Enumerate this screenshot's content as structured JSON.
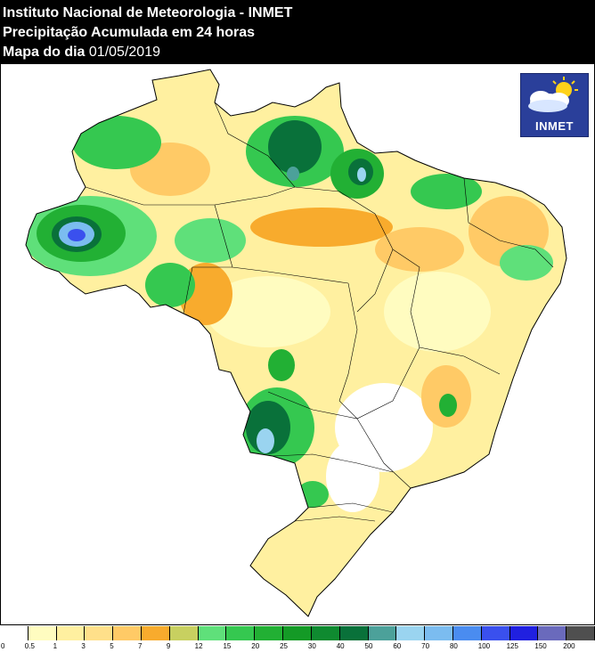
{
  "header": {
    "line1": "Instituto Nacional de Meteorologia - INMET",
    "line2": "Precipitação Acumulada em 24 horas",
    "line3_label": "Mapa do dia",
    "date": "01/05/2019"
  },
  "logo": {
    "text": "INMET",
    "icon": "sun-cloud-icon"
  },
  "legend": {
    "unit_note": "",
    "colors": [
      "#ffffff",
      "#fffcc0",
      "#fff0a0",
      "#ffe08a",
      "#ffca66",
      "#f8ab2d",
      "#c8d060",
      "#5fe07a",
      "#35c850",
      "#22b034",
      "#149a26",
      "#0f8a30",
      "#09713a",
      "#4ca19a",
      "#9ad4f0",
      "#7bbcf0",
      "#4a8cf0",
      "#3a50ee",
      "#2020e0",
      "#6a6abc",
      "#4f4f4f"
    ],
    "ticks": [
      "0",
      "0.5",
      "1",
      "3",
      "5",
      "7",
      "9",
      "12",
      "15",
      "20",
      "25",
      "30",
      "40",
      "50",
      "60",
      "70",
      "80",
      "100",
      "125",
      "150",
      "200"
    ]
  }
}
